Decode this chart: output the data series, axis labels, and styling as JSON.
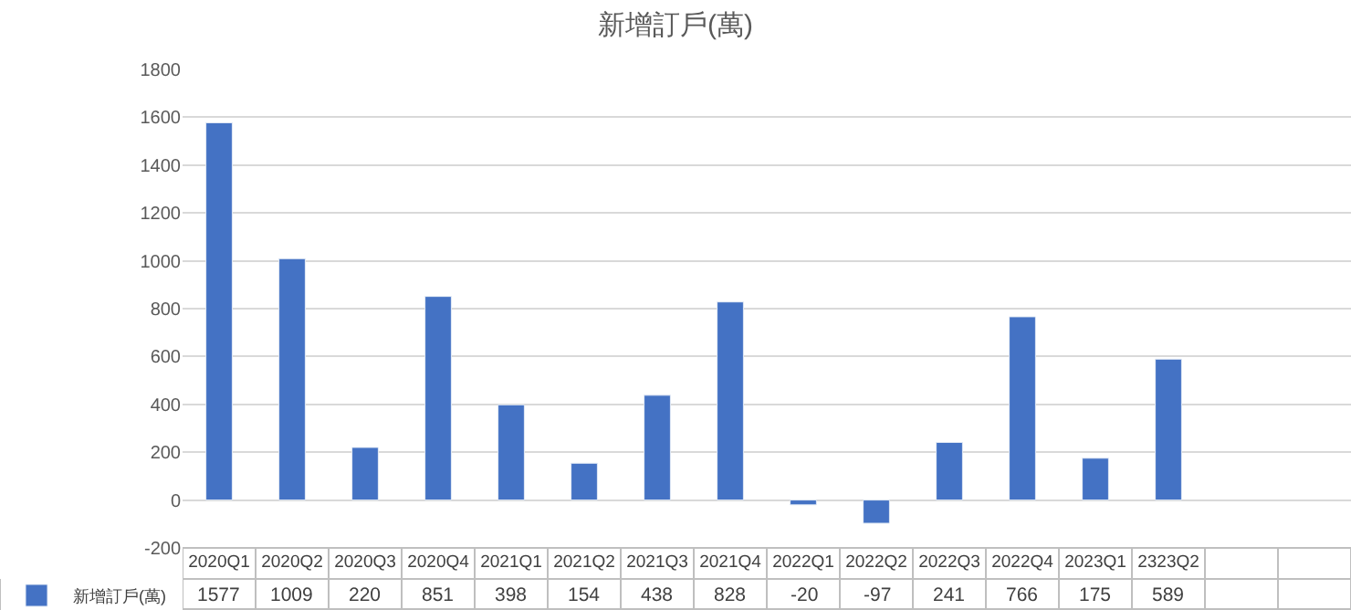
{
  "chart_data": {
    "type": "bar",
    "title": "新增訂戶(萬)",
    "categories": [
      "2020Q1",
      "2020Q2",
      "2020Q3",
      "2020Q4",
      "2021Q1",
      "2021Q2",
      "2021Q3",
      "2021Q4",
      "2022Q1",
      "2022Q2",
      "2022Q3",
      "2022Q4",
      "2023Q1",
      "2323Q2",
      null,
      null
    ],
    "series": [
      {
        "name": "新增訂戶(萬)",
        "color": "#4472c4",
        "values": [
          1577,
          1009,
          220,
          851,
          398,
          154,
          438,
          828,
          -20,
          -97,
          241,
          766,
          175,
          589,
          null,
          null
        ]
      }
    ],
    "ylim": [
      -200,
      1800
    ],
    "yticks": [
      -200,
      0,
      200,
      400,
      600,
      800,
      1000,
      1200,
      1400,
      1600,
      1800
    ],
    "grid": "y",
    "legend": "bottom left",
    "data_labels": true
  }
}
